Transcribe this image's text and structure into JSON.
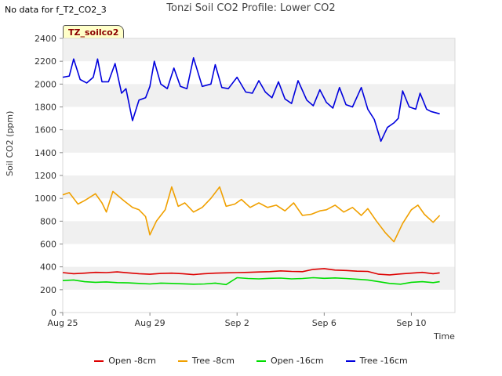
{
  "header": {
    "nodata": "No data for f_T2_CO2_3",
    "title": "Tonzi Soil CO2 Profile: Lower CO2",
    "tag": "TZ_soilco2"
  },
  "chart_data": {
    "type": "line",
    "title": "Tonzi Soil CO2 Profile: Lower CO2",
    "xlabel": "Time",
    "ylabel": "Soil CO2 (ppm)",
    "xlim": [
      0,
      18
    ],
    "ylim": [
      0,
      2400
    ],
    "grid": "alternating horizontal bands",
    "legend_position": "bottom",
    "y_ticks": [
      "0",
      "200",
      "400",
      "600",
      "800",
      "1000",
      "1200",
      "1400",
      "1600",
      "1800",
      "2000",
      "2200",
      "2400"
    ],
    "x_ticks": [
      {
        "value": 0,
        "label": "Aug 25"
      },
      {
        "value": 4,
        "label": "Aug 29"
      },
      {
        "value": 8,
        "label": "Sep 2"
      },
      {
        "value": 12,
        "label": "Sep 6"
      },
      {
        "value": 16,
        "label": "Sep 10"
      }
    ],
    "x_unit": "days since Aug 25",
    "series": [
      {
        "name": "Open -8cm",
        "color": "#dd0000",
        "x": [
          0.0,
          0.5,
          1.0,
          1.5,
          2.0,
          2.5,
          3.0,
          3.5,
          4.0,
          4.5,
          5.0,
          5.5,
          6.0,
          6.5,
          7.0,
          7.5,
          8.0,
          8.5,
          9.0,
          9.5,
          10.0,
          10.5,
          11.0,
          11.5,
          12.0,
          12.5,
          13.0,
          13.5,
          14.0,
          14.5,
          15.0,
          15.5,
          16.0,
          16.5,
          17.0,
          17.3
        ],
        "values": [
          350,
          340,
          345,
          352,
          350,
          356,
          348,
          340,
          335,
          342,
          345,
          340,
          332,
          340,
          345,
          348,
          350,
          352,
          355,
          358,
          365,
          360,
          358,
          378,
          385,
          372,
          368,
          362,
          360,
          335,
          330,
          338,
          345,
          352,
          340,
          348
        ]
      },
      {
        "name": "Tree -8cm",
        "color": "#f0a000",
        "x": [
          0.0,
          0.3,
          0.7,
          1.0,
          1.5,
          1.8,
          2.0,
          2.3,
          2.8,
          3.2,
          3.5,
          3.8,
          4.0,
          4.3,
          4.7,
          5.0,
          5.3,
          5.6,
          6.0,
          6.4,
          6.8,
          7.2,
          7.5,
          7.9,
          8.2,
          8.6,
          9.0,
          9.4,
          9.8,
          10.2,
          10.6,
          11.0,
          11.4,
          11.8,
          12.1,
          12.5,
          12.9,
          13.3,
          13.7,
          14.0,
          14.4,
          14.8,
          15.2,
          15.6,
          16.0,
          16.3,
          16.6,
          17.0,
          17.3
        ],
        "values": [
          1030,
          1050,
          950,
          980,
          1040,
          960,
          880,
          1060,
          980,
          920,
          900,
          840,
          680,
          800,
          900,
          1100,
          930,
          960,
          880,
          920,
          1000,
          1100,
          930,
          950,
          990,
          920,
          960,
          920,
          940,
          890,
          960,
          850,
          860,
          890,
          900,
          940,
          880,
          920,
          850,
          910,
          800,
          700,
          620,
          780,
          900,
          940,
          860,
          790,
          850
        ]
      },
      {
        "name": "Open -16cm",
        "color": "#00dd00",
        "x": [
          0.0,
          0.5,
          1.0,
          1.5,
          2.0,
          2.5,
          3.0,
          3.5,
          4.0,
          4.5,
          5.0,
          5.5,
          6.0,
          6.5,
          7.0,
          7.5,
          8.0,
          8.5,
          9.0,
          9.5,
          10.0,
          10.5,
          11.0,
          11.5,
          12.0,
          12.5,
          13.0,
          13.5,
          14.0,
          14.5,
          15.0,
          15.5,
          16.0,
          16.5,
          17.0,
          17.3
        ],
        "values": [
          280,
          285,
          270,
          265,
          268,
          262,
          260,
          255,
          250,
          258,
          255,
          252,
          248,
          250,
          258,
          245,
          305,
          298,
          295,
          300,
          302,
          295,
          298,
          305,
          300,
          303,
          298,
          292,
          285,
          270,
          255,
          248,
          265,
          270,
          262,
          270
        ]
      },
      {
        "name": "Tree -16cm",
        "color": "#0000dd",
        "x": [
          0.0,
          0.3,
          0.5,
          0.8,
          1.1,
          1.4,
          1.6,
          1.8,
          2.1,
          2.4,
          2.7,
          2.9,
          3.2,
          3.5,
          3.8,
          4.0,
          4.2,
          4.5,
          4.8,
          5.1,
          5.4,
          5.7,
          6.0,
          6.4,
          6.8,
          7.0,
          7.3,
          7.6,
          8.0,
          8.4,
          8.7,
          9.0,
          9.3,
          9.6,
          9.9,
          10.2,
          10.5,
          10.8,
          11.2,
          11.5,
          11.8,
          12.1,
          12.4,
          12.7,
          13.0,
          13.3,
          13.7,
          14.0,
          14.3,
          14.6,
          14.9,
          15.2,
          15.4,
          15.6,
          15.9,
          16.2,
          16.4,
          16.7,
          16.9,
          17.1,
          17.3
        ],
        "values": [
          2060,
          2070,
          2220,
          2040,
          2010,
          2060,
          2220,
          2020,
          2020,
          2180,
          1920,
          1960,
          1680,
          1860,
          1880,
          1980,
          2200,
          2000,
          1960,
          2140,
          1980,
          1960,
          2230,
          1980,
          2000,
          2170,
          1970,
          1960,
          2060,
          1930,
          1920,
          2030,
          1930,
          1880,
          2020,
          1870,
          1830,
          2030,
          1860,
          1810,
          1950,
          1840,
          1790,
          1970,
          1820,
          1800,
          1970,
          1780,
          1690,
          1500,
          1620,
          1660,
          1700,
          1940,
          1800,
          1780,
          1920,
          1780,
          1760,
          1750,
          1740
        ]
      }
    ]
  }
}
